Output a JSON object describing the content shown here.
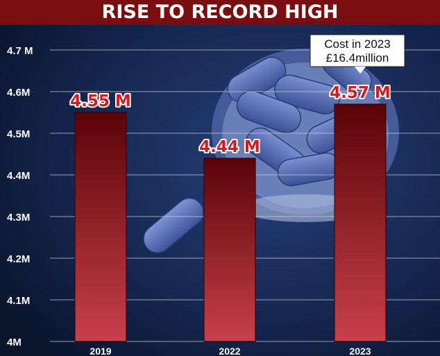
{
  "chart_data": {
    "type": "bar",
    "title": "RISE TO RECORD HIGH",
    "categories": [
      "2019",
      "2022",
      "2023"
    ],
    "values": [
      4.55,
      4.44,
      4.57
    ],
    "value_labels": [
      "4.55 M",
      "4.44 M",
      "4.57 M"
    ],
    "ylim": [
      4.0,
      4.7
    ],
    "yticks": [
      {
        "value": 4.7,
        "label": "4.7 M"
      },
      {
        "value": 4.6,
        "label": "4.6M"
      },
      {
        "value": 4.5,
        "label": "4.5M"
      },
      {
        "value": 4.4,
        "label": "4.4M"
      },
      {
        "value": 4.3,
        "label": "4.3M"
      },
      {
        "value": 4.2,
        "label": "4.2M"
      },
      {
        "value": 4.1,
        "label": "4.1M"
      },
      {
        "value": 4.0,
        "label": "4M"
      }
    ],
    "grid": true,
    "annotation": {
      "category": "2023",
      "lines": [
        "Cost in 2023",
        "£16.4million"
      ]
    }
  },
  "colors": {
    "title_band": "#7a0d10",
    "bar_top": "#5a0408",
    "bar_bottom": "#c8404a",
    "value_label": "#d11c22",
    "gridline": "#c8cdd8",
    "tick_label": "#ffffff",
    "background": "#13224a"
  },
  "icons": [
    "pill-bottle-image",
    "pill-image"
  ]
}
